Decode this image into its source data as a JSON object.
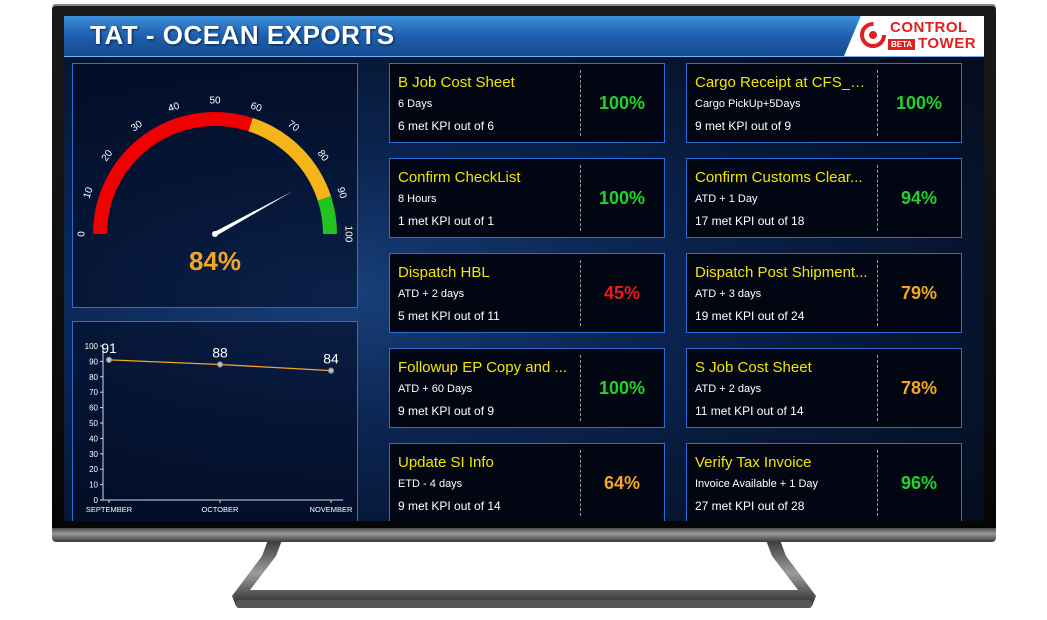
{
  "header": {
    "title": "TAT - OCEAN EXPORTS"
  },
  "logo": {
    "line1": "CONTROL",
    "line2": "TOWER",
    "badge": "BETA",
    "color": "#e02020"
  },
  "gauge": {
    "value": 84,
    "display": "84%",
    "ticks": [
      "0",
      "10",
      "20",
      "30",
      "40",
      "50",
      "60",
      "70",
      "80",
      "90",
      "100"
    ],
    "bands": [
      {
        "from": 0,
        "to": 60,
        "color": "#f00000"
      },
      {
        "from": 60,
        "to": 90,
        "color": "#f4b41a"
      },
      {
        "from": 90,
        "to": 100,
        "color": "#22c322"
      }
    ]
  },
  "chart_data": {
    "type": "line",
    "categories": [
      "SEPTEMBER",
      "OCTOBER",
      "NOVEMBER"
    ],
    "values": [
      91,
      88,
      84
    ],
    "data_labels": [
      "91",
      "88",
      "84"
    ],
    "y_ticks": [
      "0",
      "10",
      "20",
      "30",
      "40",
      "50",
      "60",
      "70",
      "80",
      "90",
      "100"
    ],
    "ylim": [
      0,
      100
    ],
    "line_color": "#f4a623",
    "grid": false
  },
  "status_colors": {
    "green": "#22d32a",
    "orange": "#f4a623",
    "red": "#f01a1a"
  },
  "cards": [
    {
      "title": "B Job Cost Sheet",
      "sub": "6 Days",
      "kpi": "6 met KPI out of 6",
      "pct": "100%",
      "status": "green"
    },
    {
      "title": "Cargo Receipt at CFS_C...",
      "sub": "Cargo PickUp+5Days",
      "kpi": "9 met KPI out of 9",
      "pct": "100%",
      "status": "green"
    },
    {
      "title": "Confirm CheckList",
      "sub": "8 Hours",
      "kpi": "1 met KPI out of 1",
      "pct": "100%",
      "status": "green"
    },
    {
      "title": "Confirm Customs Clear...",
      "sub": "ATD + 1 Day",
      "kpi": "17 met KPI out of 18",
      "pct": "94%",
      "status": "green"
    },
    {
      "title": "Dispatch HBL",
      "sub": "ATD + 2 days",
      "kpi": "5 met KPI out of 11",
      "pct": "45%",
      "status": "red"
    },
    {
      "title": "Dispatch Post Shipment...",
      "sub": "ATD + 3 days",
      "kpi": "19 met KPI out of 24",
      "pct": "79%",
      "status": "orange"
    },
    {
      "title": "Followup EP Copy and ...",
      "sub": "ATD + 60 Days",
      "kpi": "9 met KPI out of 9",
      "pct": "100%",
      "status": "green"
    },
    {
      "title": "S Job Cost Sheet",
      "sub": "ATD + 2 days",
      "kpi": "11 met KPI out of 14",
      "pct": "78%",
      "status": "orange"
    },
    {
      "title": "Update SI Info",
      "sub": "ETD - 4 days",
      "kpi": "9 met KPI out of 14",
      "pct": "64%",
      "status": "orange"
    },
    {
      "title": "Verify Tax Invoice",
      "sub": "Invoice Available + 1 Day",
      "kpi": "27 met KPI out of 28",
      "pct": "96%",
      "status": "green"
    }
  ]
}
